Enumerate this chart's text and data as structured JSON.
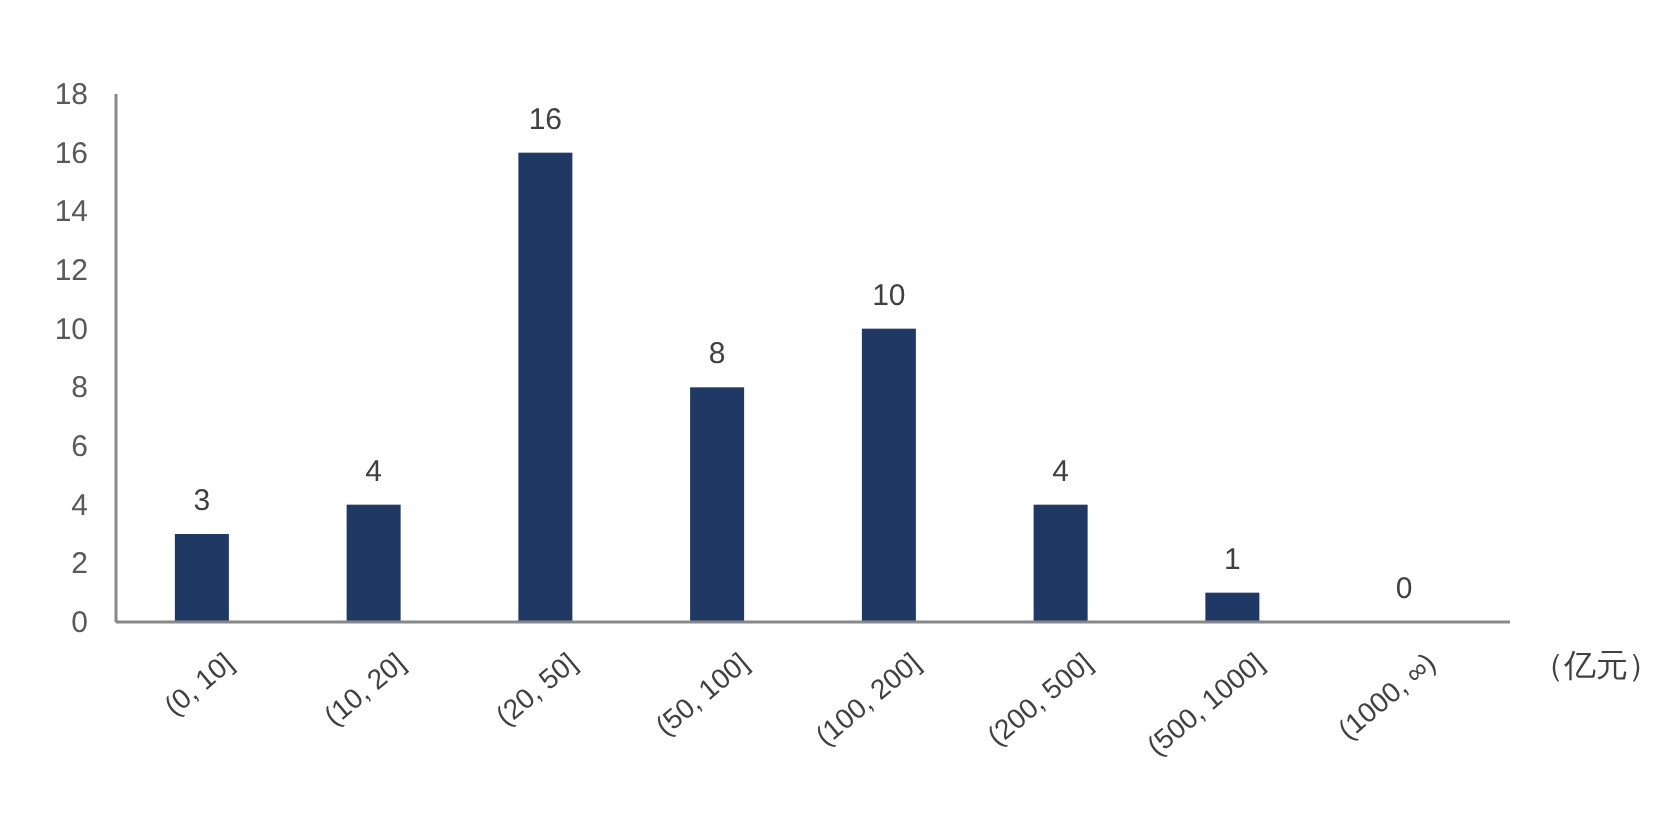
{
  "chart_data": {
    "type": "bar",
    "xlabel": "（亿元）",
    "categories": [
      "(0, 10]",
      "(10, 20]",
      "(20, 50]",
      "(50, 100]",
      "(100, 200]",
      "(200, 500]",
      "(500, 1000]",
      "(1000, ∞)"
    ],
    "values": [
      3,
      4,
      16,
      8,
      10,
      4,
      1,
      0
    ],
    "color": "#1f3864",
    "ylim": [
      0,
      18
    ],
    "yticks": [
      0,
      2,
      4,
      6,
      8,
      10,
      12,
      14,
      16,
      18
    ],
    "data_labels": true
  }
}
